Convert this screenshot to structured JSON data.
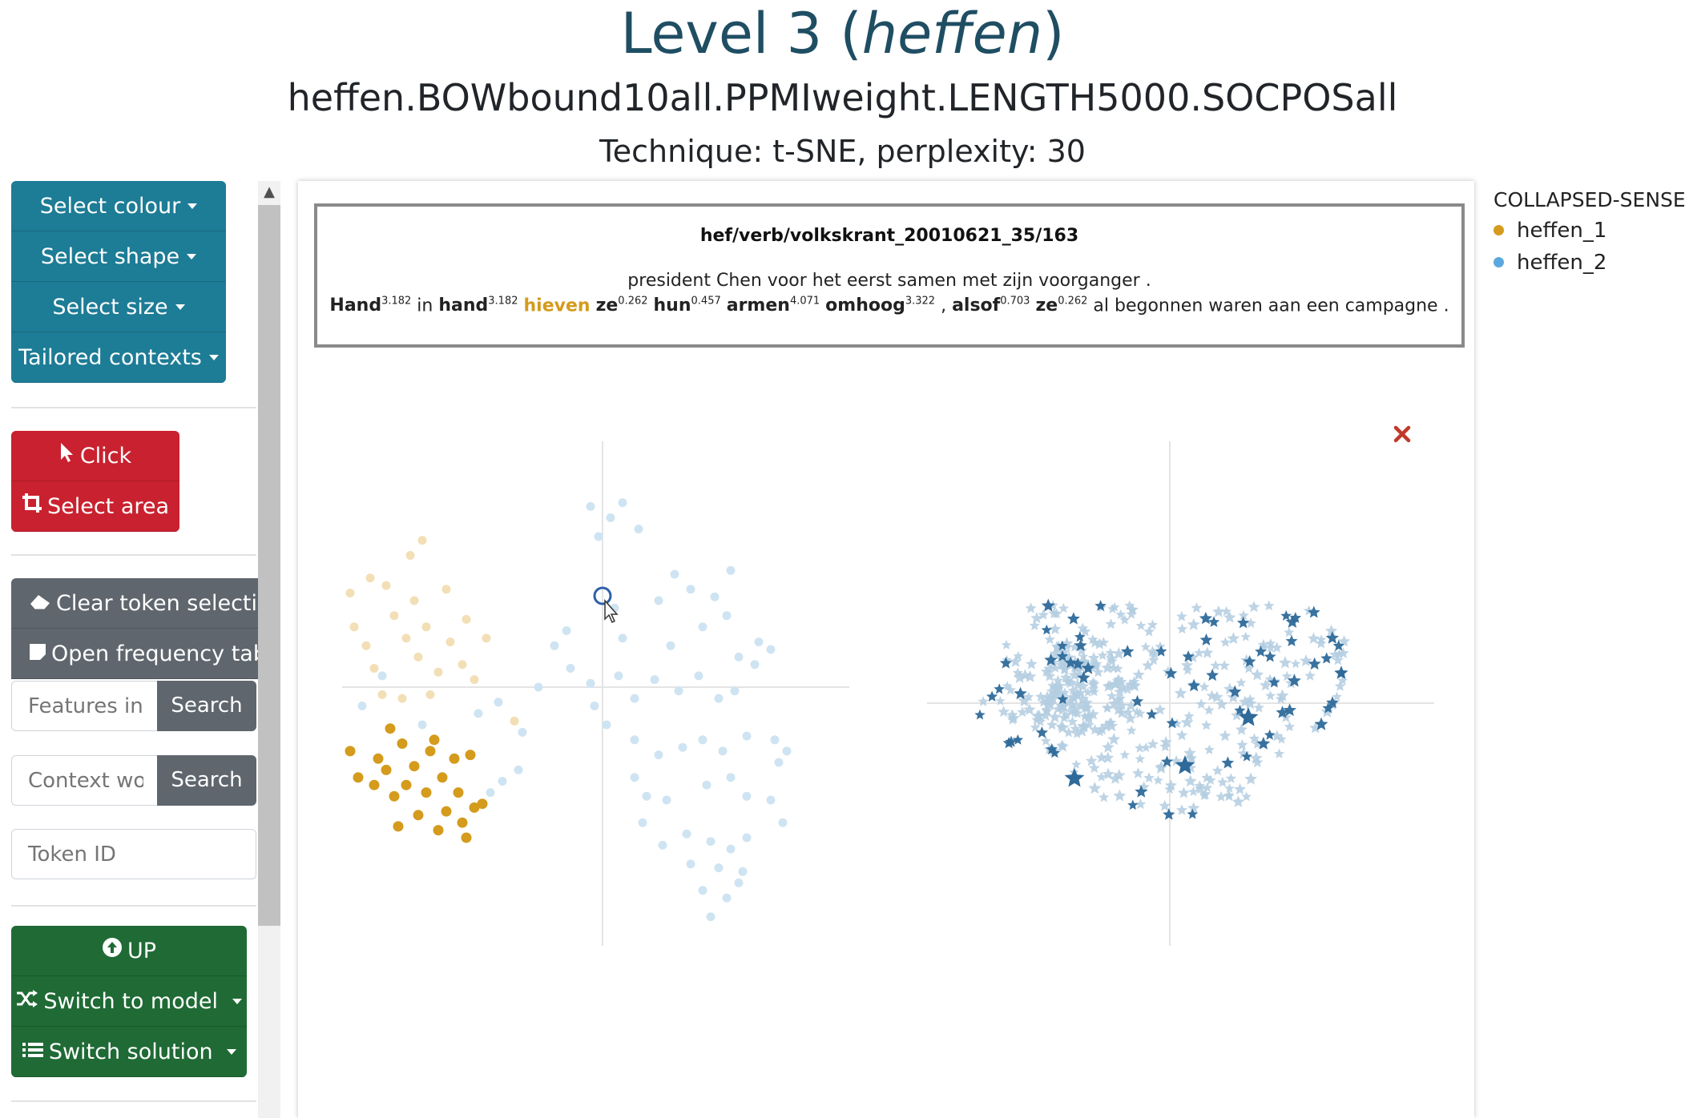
{
  "header": {
    "title_prefix": "Level 3 (",
    "title_lemma": "heffen",
    "title_suffix": ")",
    "model": "heffen.BOWbound10all.PPMIweight.LENGTH5000.SOCPOSall",
    "technique": "Technique: t-SNE, perplexity: 30"
  },
  "sidebar": {
    "dropdowns": {
      "colour": "Select colour",
      "shape": "Select shape",
      "size": "Select size",
      "contexts": "Tailored contexts"
    },
    "mode": {
      "click": "Click",
      "select_area": "Select area"
    },
    "tools": {
      "clear": "Clear token selection",
      "freq": "Open frequency table"
    },
    "features_placeholder": "Features in",
    "features_search": "Search",
    "context_placeholder": "Context words",
    "context_search": "Search",
    "token_placeholder": "Token ID",
    "nav": {
      "up": "UP",
      "switch_model": "Switch to model",
      "switch_solution": "Switch solution"
    }
  },
  "context": {
    "token_id": "hef/verb/volkskrant_20010621_35/163",
    "line1": "president Chen voor het eerst samen met zijn voorganger .",
    "words": [
      {
        "w": "Hand",
        "s": "3.182",
        "b": true
      },
      {
        "w": "in",
        "s": "",
        "b": false
      },
      {
        "w": "hand",
        "s": "3.182",
        "b": true
      },
      {
        "w": "hieven",
        "s": "",
        "b": true,
        "target": true
      },
      {
        "w": "ze",
        "s": "0.262",
        "b": true
      },
      {
        "w": "hun",
        "s": "0.457",
        "b": true
      },
      {
        "w": "armen",
        "s": "4.071",
        "b": true
      },
      {
        "w": "omhoog",
        "s": "3.322",
        "b": true
      },
      {
        "w": ",",
        "s": "",
        "b": false
      },
      {
        "w": "alsof",
        "s": "0.703",
        "b": true
      },
      {
        "w": "ze",
        "s": "0.262",
        "b": true
      },
      {
        "w": "al begonnen waren aan een campagne .",
        "s": "",
        "b": false
      }
    ]
  },
  "legend": {
    "title": "COLLAPSED-SENSE",
    "items": [
      {
        "label": "heffen_1",
        "color": "#d49b1c"
      },
      {
        "label": "heffen_2",
        "color": "#5aa9de"
      }
    ]
  },
  "colors": {
    "heffen_1": "#d49b1c",
    "heffen_1_faded": "#f3dfb6",
    "heffen_2_faded": "#cfe4f2",
    "star_light": "#b3cce0",
    "star_dark": "#2e6a9a",
    "close": "#c0392b"
  },
  "chart_data": [
    {
      "type": "scatter",
      "panel": "left",
      "series": [
        {
          "name": "heffen_1",
          "points": [
            [
              -6.2,
              1.6
            ],
            [
              -5.9,
              1.1
            ],
            [
              -5.7,
              0.5
            ],
            [
              -5.2,
              1.9
            ],
            [
              -4.9,
              1.3
            ],
            [
              -4.6,
              0.8
            ],
            [
              -4.4,
              1.6
            ],
            [
              -4.1,
              0.4
            ],
            [
              -3.8,
              1.2
            ],
            [
              -5.5,
              -0.2
            ],
            [
              -5.0,
              -0.3
            ],
            [
              -4.3,
              -0.2
            ],
            [
              -3.5,
              0.6
            ],
            [
              -6.3,
              2.5
            ],
            [
              -5.4,
              2.7
            ],
            [
              -4.7,
              2.3
            ],
            [
              -3.9,
              2.6
            ],
            [
              -3.4,
              1.8
            ],
            [
              -2.9,
              1.3
            ],
            [
              -3.2,
              0.2
            ],
            [
              -4.8,
              3.5
            ],
            [
              -4.5,
              3.9
            ],
            [
              -5.8,
              2.9
            ],
            [
              -2.2,
              -0.9
            ]
          ]
        },
        {
          "name": "heffen_1_selected",
          "points": [
            [
              -5.3,
              -1.1
            ],
            [
              -5.0,
              -1.5
            ],
            [
              -5.6,
              -1.9
            ],
            [
              -4.7,
              -2.1
            ],
            [
              -4.3,
              -1.7
            ],
            [
              -4.9,
              -2.6
            ],
            [
              -5.2,
              -2.9
            ],
            [
              -4.4,
              -2.8
            ],
            [
              -4.0,
              -2.4
            ],
            [
              -3.7,
              -1.9
            ],
            [
              -3.3,
              -1.8
            ],
            [
              -3.6,
              -2.8
            ],
            [
              -3.2,
              -3.2
            ],
            [
              -3.5,
              -3.6
            ],
            [
              -3.9,
              -3.3
            ],
            [
              -4.6,
              -3.4
            ],
            [
              -5.1,
              -3.7
            ],
            [
              -6.1,
              -2.4
            ],
            [
              -5.7,
              -2.6
            ],
            [
              -6.3,
              -1.7
            ],
            [
              -4.2,
              -1.4
            ],
            [
              -3.0,
              -3.1
            ],
            [
              -3.4,
              -4.0
            ],
            [
              -5.4,
              -2.2
            ],
            [
              -4.1,
              -3.8
            ]
          ]
        },
        {
          "name": "heffen_2",
          "points": [
            [
              -0.3,
              4.8
            ],
            [
              0.2,
              4.5
            ],
            [
              0.5,
              4.9
            ],
            [
              0.9,
              4.2
            ],
            [
              -0.1,
              4.0
            ],
            [
              1.4,
              2.3
            ],
            [
              2.2,
              2.6
            ],
            [
              2.8,
              2.4
            ],
            [
              3.1,
              1.9
            ],
            [
              2.5,
              1.6
            ],
            [
              0.5,
              1.3
            ],
            [
              1.7,
              1.1
            ],
            [
              3.4,
              0.8
            ],
            [
              3.9,
              1.2
            ],
            [
              -1.2,
              1.1
            ],
            [
              -0.8,
              0.5
            ],
            [
              -0.3,
              0.1
            ],
            [
              0.4,
              0.3
            ],
            [
              0.8,
              -0.3
            ],
            [
              1.3,
              0.2
            ],
            [
              1.9,
              -0.1
            ],
            [
              2.4,
              0.3
            ],
            [
              2.9,
              -0.3
            ],
            [
              3.3,
              -0.1
            ],
            [
              3.8,
              0.6
            ],
            [
              4.2,
              1.0
            ],
            [
              -2.6,
              -0.4
            ],
            [
              -3.1,
              -0.7
            ],
            [
              -2.0,
              -1.2
            ],
            [
              -1.6,
              0.0
            ],
            [
              0.8,
              -1.4
            ],
            [
              1.4,
              -1.8
            ],
            [
              2.0,
              -1.6
            ],
            [
              2.5,
              -1.4
            ],
            [
              3.0,
              -1.7
            ],
            [
              3.6,
              -1.3
            ],
            [
              4.3,
              -1.4
            ],
            [
              4.6,
              -1.7
            ],
            [
              4.4,
              -2.0
            ],
            [
              0.8,
              -2.4
            ],
            [
              1.1,
              -2.9
            ],
            [
              1.6,
              -3.0
            ],
            [
              2.6,
              -2.6
            ],
            [
              3.2,
              -2.4
            ],
            [
              3.6,
              -2.9
            ],
            [
              4.2,
              -3.0
            ],
            [
              4.5,
              -3.6
            ],
            [
              1.0,
              -3.6
            ],
            [
              1.5,
              -4.2
            ],
            [
              2.1,
              -3.9
            ],
            [
              2.7,
              -4.1
            ],
            [
              3.2,
              -4.3
            ],
            [
              3.6,
              -4.0
            ],
            [
              2.2,
              -4.7
            ],
            [
              2.9,
              -4.8
            ],
            [
              3.5,
              -4.9
            ],
            [
              2.5,
              -5.4
            ],
            [
              3.1,
              -5.6
            ],
            [
              2.7,
              -6.1
            ],
            [
              3.4,
              -5.2
            ],
            [
              -5.5,
              0.3
            ],
            [
              -6.0,
              -0.5
            ],
            [
              -4.5,
              -1.0
            ],
            [
              -2.5,
              -2.5
            ],
            [
              -2.1,
              -2.2
            ],
            [
              -2.8,
              -2.8
            ],
            [
              -0.9,
              1.5
            ],
            [
              0.3,
              2.1
            ],
            [
              1.8,
              3.0
            ],
            [
              3.2,
              3.1
            ],
            [
              -0.2,
              -0.5
            ],
            [
              0.1,
              -1.0
            ]
          ]
        }
      ]
    },
    {
      "type": "scatter",
      "panel": "right",
      "marker": "star",
      "series": [
        {
          "name": "light",
          "count": 380
        },
        {
          "name": "dark",
          "count": 70
        }
      ]
    }
  ]
}
